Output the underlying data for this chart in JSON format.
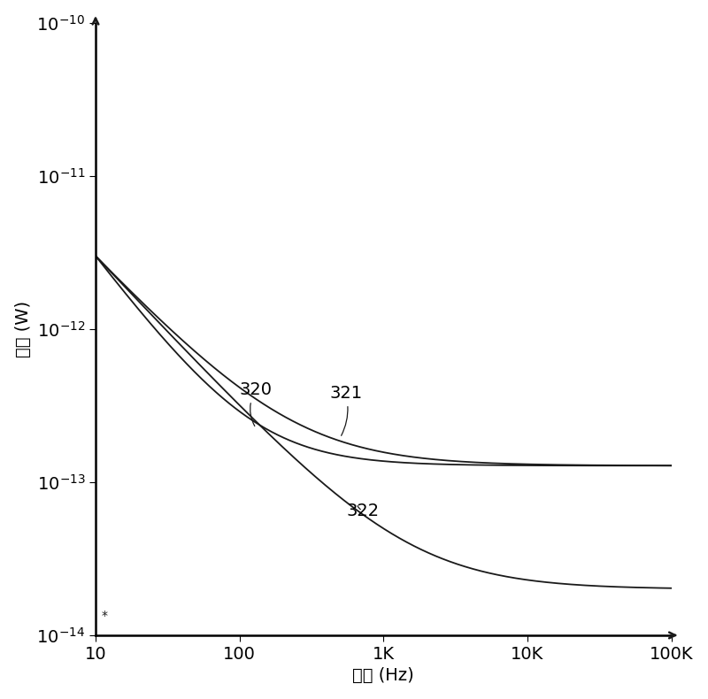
{
  "xlabel": "频率 (Hz)",
  "ylabel": "功率 (W)",
  "xmin": 10,
  "xmax": 100000,
  "ymin": 1e-14,
  "ymax": 1e-10,
  "background_color": "#ffffff",
  "line_color": "#1a1a1a",
  "xtick_labels": [
    "10",
    "100",
    "1K",
    "10K",
    "100K"
  ],
  "xtick_values": [
    10,
    100,
    1000,
    10000,
    100000
  ],
  "fontsize_ticks": 14,
  "fontsize_axis": 14,
  "fontsize_annot": 14
}
